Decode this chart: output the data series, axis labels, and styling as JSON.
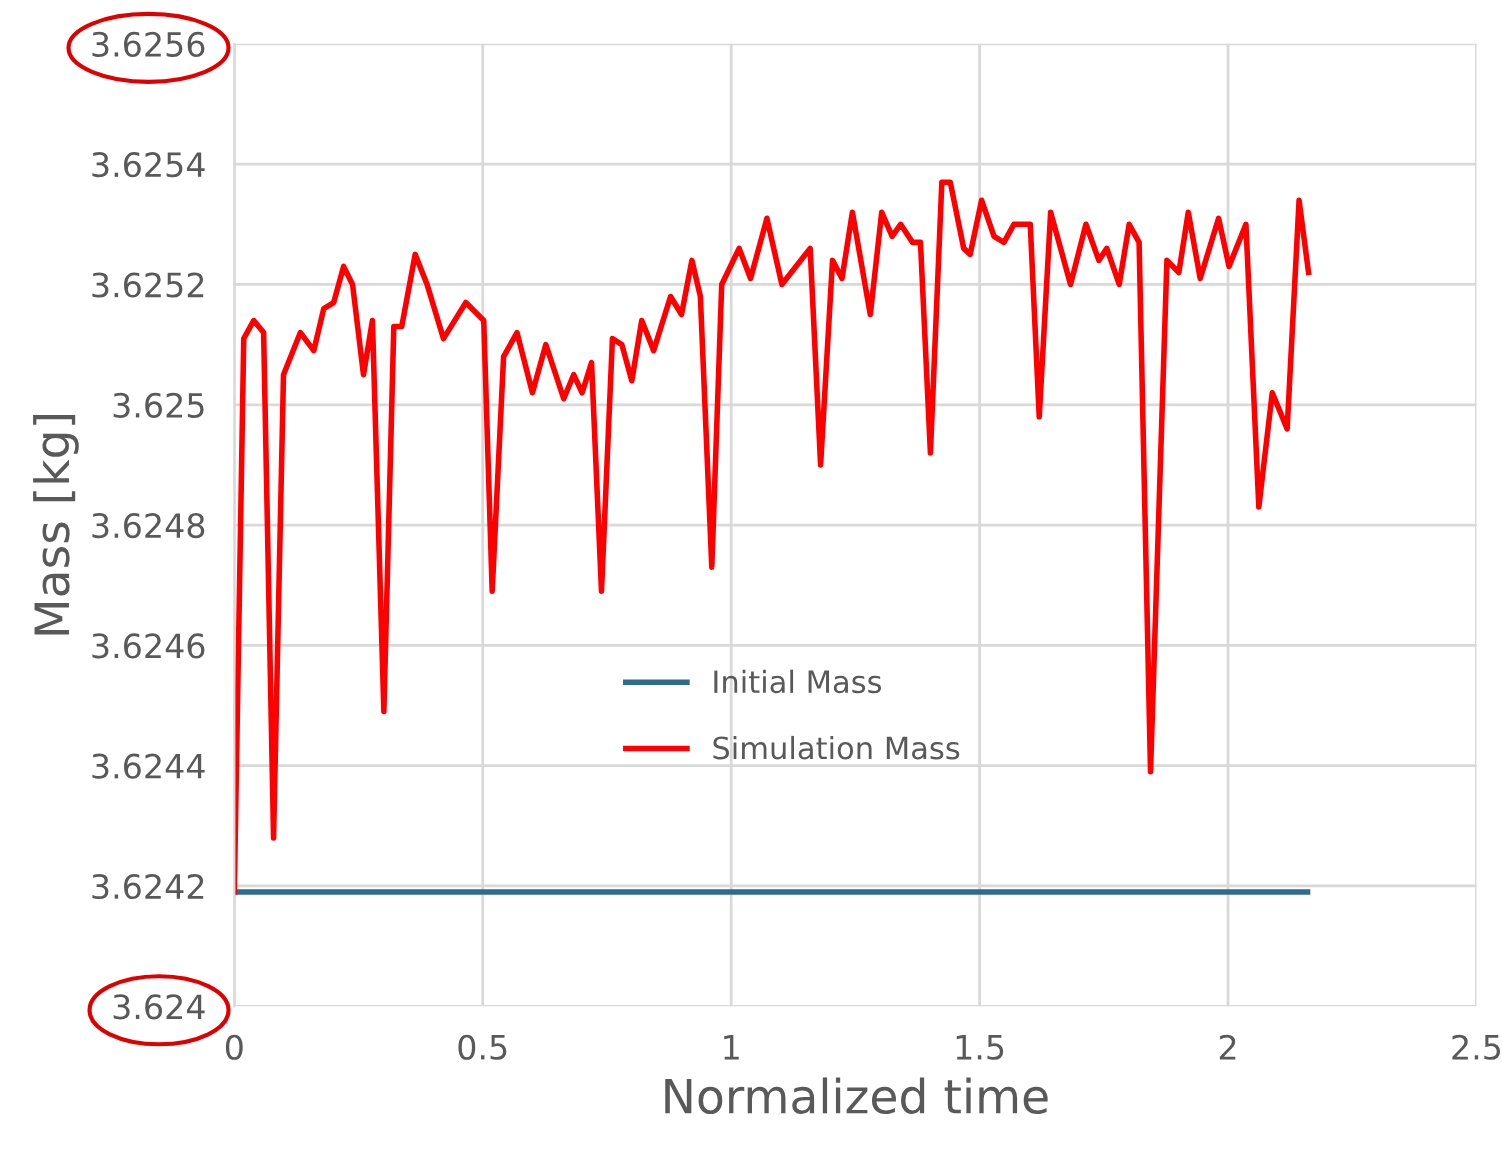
{
  "chart_data": {
    "type": "line",
    "xlabel": "Normalized time",
    "ylabel": "Mass [kg]",
    "xlim": [
      0,
      2.5
    ],
    "xticks": [
      0,
      0.5,
      1,
      1.5,
      2,
      2.5
    ],
    "ylim": [
      3.624,
      3.6256
    ],
    "yticks": [
      3.624,
      3.6242,
      3.6244,
      3.6246,
      3.6248,
      3.625,
      3.6252,
      3.6254,
      3.6256
    ],
    "grid": true,
    "legend": "center",
    "marker": "none",
    "line_style": "solid",
    "series": [
      {
        "name": "Initial Mass",
        "color": "#2e6b8e",
        "x": [
          0,
          2.16
        ],
        "values": [
          3.62419,
          3.62419
        ]
      },
      {
        "name": "Simulation Mass",
        "color": "#ff0000",
        "x": [
          0,
          0.019,
          0.039,
          0.059,
          0.079,
          0.099,
          0.133,
          0.16,
          0.18,
          0.2,
          0.22,
          0.238,
          0.26,
          0.278,
          0.301,
          0.321,
          0.337,
          0.364,
          0.388,
          0.421,
          0.466,
          0.502,
          0.519,
          0.542,
          0.569,
          0.6,
          0.627,
          0.663,
          0.683,
          0.7,
          0.719,
          0.739,
          0.761,
          0.78,
          0.8,
          0.82,
          0.844,
          0.878,
          0.9,
          0.921,
          0.938,
          0.961,
          0.981,
          1.016,
          1.039,
          1.072,
          1.102,
          1.159,
          1.18,
          1.204,
          1.223,
          1.244,
          1.28,
          1.303,
          1.324,
          1.341,
          1.365,
          1.381,
          1.401,
          1.424,
          1.441,
          1.468,
          1.481,
          1.504,
          1.529,
          1.549,
          1.569,
          1.602,
          1.62,
          1.643,
          1.683,
          1.714,
          1.74,
          1.756,
          1.781,
          1.801,
          1.821,
          1.844,
          1.877,
          1.901,
          1.92,
          1.944,
          1.981,
          2.002,
          2.036,
          2.062,
          2.089,
          2.119,
          2.143,
          2.162
        ],
        "values": [
          3.62419,
          3.62511,
          3.62514,
          3.62512,
          3.62428,
          3.62505,
          3.62512,
          3.62509,
          3.62516,
          3.62517,
          3.62523,
          3.6252,
          3.62505,
          3.62514,
          3.62449,
          3.62513,
          3.62513,
          3.62525,
          3.6252,
          3.62511,
          3.62517,
          3.62514,
          3.62469,
          3.62508,
          3.62512,
          3.62502,
          3.6251,
          3.62501,
          3.62505,
          3.62502,
          3.62507,
          3.62469,
          3.62511,
          3.6251,
          3.62504,
          3.62514,
          3.62509,
          3.62518,
          3.62515,
          3.62524,
          3.62518,
          3.62473,
          3.6252,
          3.62526,
          3.62521,
          3.62531,
          3.6252,
          3.62526,
          3.6249,
          3.62524,
          3.62521,
          3.62532,
          3.62515,
          3.62532,
          3.62528,
          3.6253,
          3.62527,
          3.62527,
          3.62492,
          3.62537,
          3.62537,
          3.62526,
          3.62525,
          3.62534,
          3.62528,
          3.62527,
          3.6253,
          3.6253,
          3.62498,
          3.62532,
          3.6252,
          3.6253,
          3.62524,
          3.62526,
          3.6252,
          3.6253,
          3.62527,
          3.62439,
          3.62524,
          3.62522,
          3.62532,
          3.62521,
          3.62531,
          3.62523,
          3.6253,
          3.62483,
          3.62502,
          3.62496,
          3.62534,
          3.62522
        ]
      }
    ]
  }
}
